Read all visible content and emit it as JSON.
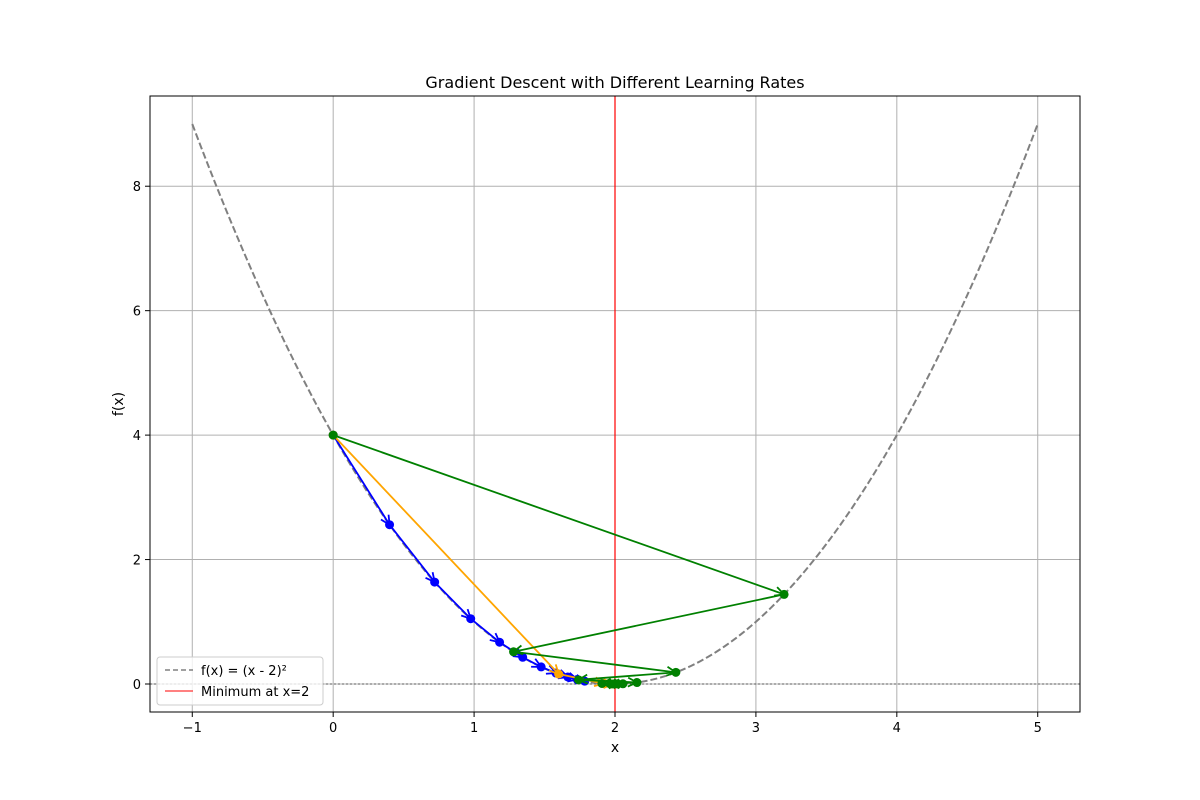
{
  "chart_data": {
    "type": "line",
    "title": "Gradient Descent with Different Learning Rates",
    "xlabel": "x",
    "ylabel": "f(x)",
    "xlim": [
      -1.3,
      5.3
    ],
    "ylim": [
      -0.45,
      9.45
    ],
    "xticks": [
      -1,
      0,
      1,
      2,
      3,
      4,
      5
    ],
    "xtick_labels": [
      "−1",
      "0",
      "1",
      "2",
      "3",
      "4",
      "5"
    ],
    "yticks": [
      0,
      2,
      4,
      6,
      8
    ],
    "ytick_labels": [
      "0",
      "2",
      "4",
      "6",
      "8"
    ],
    "grid": true,
    "legend_placement": "lower-left",
    "function_curve": {
      "name": "f(x) = (x - 2)²",
      "color": "#808080",
      "style": "dashed",
      "x_range": [
        -1,
        5
      ]
    },
    "minimum_line": {
      "name": "Minimum at x=2",
      "x": 2,
      "color": "#ff0000"
    },
    "zero_line": {
      "y": 0,
      "color": "#000000",
      "style": "dotted"
    },
    "series": [
      {
        "color": "#0000ff",
        "x": [
          0,
          0.4,
          0.72,
          0.976,
          1.181,
          1.345,
          1.476,
          1.581,
          1.665,
          1.732,
          1.785
        ],
        "y": [
          4,
          2.56,
          1.638,
          1.049,
          0.671,
          0.429,
          0.275,
          0.176,
          0.113,
          0.072,
          0.046
        ]
      },
      {
        "color": "#ffa500",
        "x": [
          0,
          1.6,
          1.92,
          1.984,
          1.997,
          1.999
        ],
        "y": [
          4,
          0.16,
          0.0064,
          0.0003,
          1e-05,
          0.0
        ]
      },
      {
        "color": "#008000",
        "x": [
          0,
          3.2,
          1.28,
          2.432,
          1.741,
          2.156,
          1.907,
          2.056,
          1.967,
          2.02,
          1.988
        ],
        "y": [
          4,
          1.44,
          0.518,
          0.187,
          0.067,
          0.024,
          0.0087,
          0.0031,
          0.0011,
          0.0004,
          0.0001
        ]
      }
    ]
  }
}
